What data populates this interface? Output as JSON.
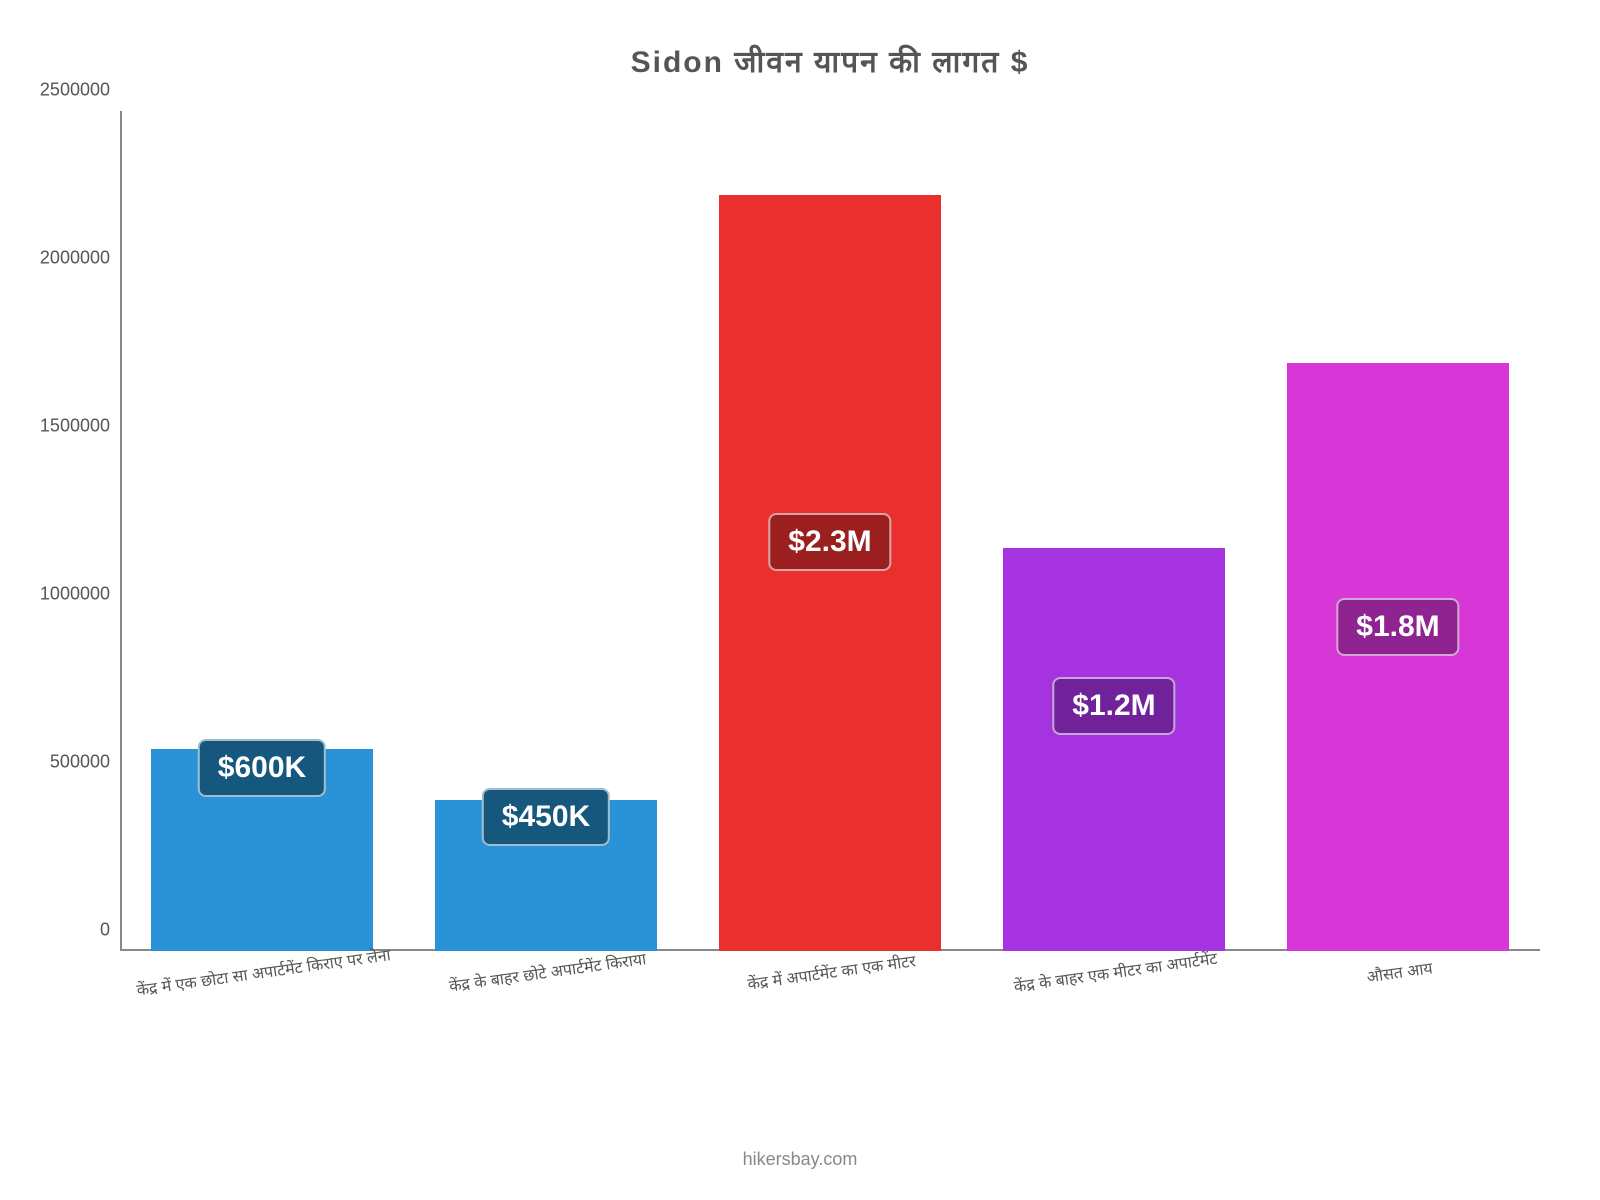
{
  "chart": {
    "type": "bar",
    "title": "Sidon जीवन    यापन    की    लागत    $",
    "title_fontsize": 30,
    "title_color": "#555555",
    "attribution": "hikersbay.com",
    "attribution_fontsize": 18,
    "attribution_color": "#888888",
    "background_color": "#ffffff",
    "axis_color": "#888888",
    "label_fontsize": 16,
    "tick_fontsize": 18,
    "value_label_fontsize": 30,
    "ylim_min": 0,
    "ylim_max": 2500000,
    "ytick_step": 500000,
    "yticks": [
      {
        "value": 0,
        "label": "0"
      },
      {
        "value": 500000,
        "label": "500000"
      },
      {
        "value": 1000000,
        "label": "1000000"
      },
      {
        "value": 1500000,
        "label": "1500000"
      },
      {
        "value": 2000000,
        "label": "2000000"
      },
      {
        "value": 2500000,
        "label": "2500000"
      }
    ],
    "bar_width_pct": 78,
    "categories": [
      {
        "label": "केंद्र में एक छोटा सा अपार्टमेंट किराए पर लेना",
        "value": 600000,
        "display_value": "$600K",
        "bar_color": "#2a92d6",
        "badge_color": "#16577e",
        "badge_offset_from_bar_top_pct": -5
      },
      {
        "label": "केंद्र के बाहर छोटे अपार्टमेंट किराया",
        "value": 450000,
        "display_value": "$450K",
        "bar_color": "#2a92d6",
        "badge_color": "#16577e",
        "badge_offset_from_bar_top_pct": -8
      },
      {
        "label": "केंद्र में अपार्टमेंट का एक मीटर",
        "value": 2250000,
        "display_value": "$2.3M",
        "bar_color": "#ea2f2f",
        "badge_color": "#9b1f1f",
        "badge_offset_from_bar_top_pct": 42
      },
      {
        "label": "केंद्र के बाहर एक मीटर का अपार्टमेंट",
        "value": 1200000,
        "display_value": "$1.2M",
        "bar_color": "#a633e0",
        "badge_color": "#6f2299",
        "badge_offset_from_bar_top_pct": 32
      },
      {
        "label": "औसत आय",
        "value": 1750000,
        "display_value": "$1.8M",
        "bar_color": "#d837d8",
        "badge_color": "#8f2490",
        "badge_offset_from_bar_top_pct": 40
      }
    ]
  }
}
